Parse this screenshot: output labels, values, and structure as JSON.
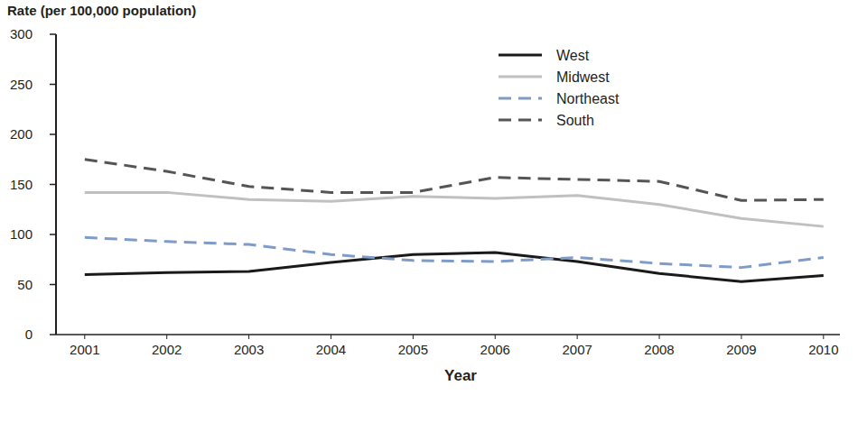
{
  "chart_data": {
    "type": "line",
    "y_label": "Rate (per 100,000 population)",
    "x_label": "Year",
    "x": [
      2001,
      2002,
      2003,
      2004,
      2005,
      2006,
      2007,
      2008,
      2009,
      2010
    ],
    "xlim": [
      2000.65,
      2010.2
    ],
    "xticks": [
      2001,
      2002,
      2003,
      2004,
      2005,
      2006,
      2007,
      2008,
      2009,
      2010
    ],
    "ylim": [
      0,
      300
    ],
    "yticks": [
      0,
      50,
      100,
      150,
      200,
      250,
      300
    ],
    "grid": false,
    "legend": "upper right",
    "series": [
      {
        "name": "West",
        "color": "#1a1a1a",
        "line_style": "solid",
        "values": [
          60,
          62,
          63,
          72,
          80,
          82,
          73,
          61,
          53,
          59
        ]
      },
      {
        "name": "Midwest",
        "color": "#c0c0c0",
        "line_style": "solid",
        "values": [
          142,
          142,
          135,
          133,
          138,
          136,
          139,
          130,
          116,
          108
        ]
      },
      {
        "name": "Northeast",
        "color": "#7f9cc8",
        "line_style": "dashed",
        "values": [
          97,
          93,
          90,
          80,
          74,
          73,
          77,
          71,
          67,
          77
        ]
      },
      {
        "name": "South",
        "color": "#555555",
        "line_style": "dashed",
        "values": [
          175,
          163,
          148,
          142,
          142,
          157,
          155,
          153,
          134,
          135
        ]
      }
    ]
  }
}
